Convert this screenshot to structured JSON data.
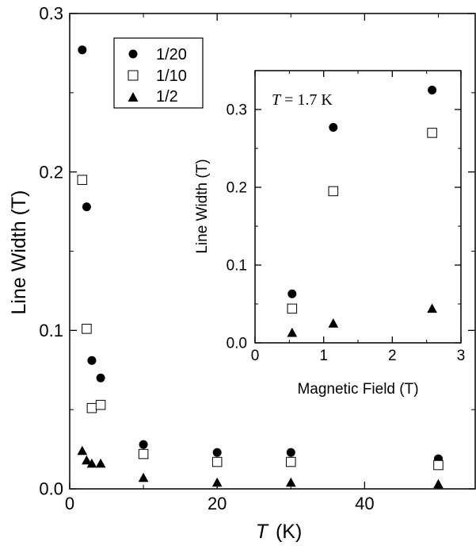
{
  "colors": {
    "ink": "#000000",
    "background": "#ffffff"
  },
  "chart_data": [
    {
      "type": "scatter",
      "title": "",
      "xlabel_var": "T",
      "xlabel_unit": "(K)",
      "ylabel": "Line Width (T)",
      "xlim": [
        0,
        55
      ],
      "ylim": [
        0,
        0.3
      ],
      "x_ticks": [
        0,
        20,
        40
      ],
      "x_tick_labels": [
        "0",
        "20",
        "40"
      ],
      "y_ticks": [
        0,
        0.1,
        0.2,
        0.3
      ],
      "y_tick_labels": [
        "0.0",
        "0.1",
        "0.2",
        "0.3"
      ],
      "grid": false,
      "legend_position": "top-left",
      "series": [
        {
          "name": "1/20",
          "marker": "filled-circle",
          "points": [
            [
              1.7,
              0.277
            ],
            [
              2.3,
              0.178
            ],
            [
              3.0,
              0.081
            ],
            [
              4.2,
              0.07
            ],
            [
              10,
              0.028
            ],
            [
              20,
              0.023
            ],
            [
              30,
              0.023
            ],
            [
              50,
              0.019
            ]
          ]
        },
        {
          "name": "1/10",
          "marker": "open-square",
          "points": [
            [
              1.7,
              0.195
            ],
            [
              2.3,
              0.101
            ],
            [
              3.0,
              0.051
            ],
            [
              4.2,
              0.053
            ],
            [
              10,
              0.022
            ],
            [
              20,
              0.017
            ],
            [
              30,
              0.017
            ],
            [
              50,
              0.015
            ]
          ]
        },
        {
          "name": "1/2",
          "marker": "filled-triangle",
          "points": [
            [
              1.7,
              0.024
            ],
            [
              2.3,
              0.018
            ],
            [
              3.0,
              0.016
            ],
            [
              4.2,
              0.016
            ],
            [
              10,
              0.007
            ],
            [
              20,
              0.004
            ],
            [
              30,
              0.004
            ],
            [
              50,
              0.003
            ]
          ]
        }
      ]
    },
    {
      "type": "scatter",
      "title": "",
      "annotation_var": "T",
      "annotation_value": " = 1.7 K",
      "xlabel": "Magnetic Field (T)",
      "ylabel": "Line Width (T)",
      "xlim": [
        0,
        3
      ],
      "ylim": [
        0,
        0.35
      ],
      "x_ticks": [
        0,
        1,
        2,
        3
      ],
      "x_tick_labels": [
        "0",
        "1",
        "2",
        "3"
      ],
      "y_ticks": [
        0,
        0.1,
        0.2,
        0.3
      ],
      "y_tick_labels": [
        "0.0",
        "0.1",
        "0.2",
        "0.3"
      ],
      "grid": false,
      "series": [
        {
          "name": "1/20",
          "marker": "filled-circle",
          "points": [
            [
              0.54,
              0.063
            ],
            [
              1.14,
              0.277
            ],
            [
              2.58,
              0.325
            ]
          ]
        },
        {
          "name": "1/10",
          "marker": "open-square",
          "points": [
            [
              0.54,
              0.044
            ],
            [
              1.14,
              0.195
            ],
            [
              2.58,
              0.27
            ]
          ]
        },
        {
          "name": "1/2",
          "marker": "filled-triangle",
          "points": [
            [
              0.54,
              0.013
            ],
            [
              1.14,
              0.025
            ],
            [
              2.58,
              0.044
            ]
          ]
        }
      ]
    }
  ]
}
